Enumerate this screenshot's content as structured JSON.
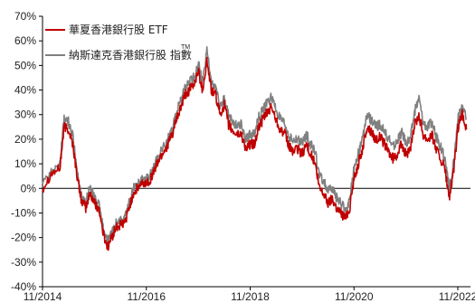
{
  "chart_data": {
    "type": "line",
    "title": "",
    "xlabel": "",
    "ylabel": "",
    "ylim": [
      -40,
      70
    ],
    "y_ticks": [
      -40,
      -30,
      -20,
      -10,
      0,
      10,
      20,
      30,
      40,
      50,
      60,
      70
    ],
    "y_tick_labels": [
      "-40%",
      "-30%",
      "-20%",
      "-10%",
      "0%",
      "10%",
      "20%",
      "30%",
      "40%",
      "50%",
      "60%",
      "70%"
    ],
    "x_tick_labels": [
      "11/2014",
      "11/2016",
      "11/2018",
      "11/2020",
      "11/2022"
    ],
    "x_tick_values": [
      "2014-11",
      "2016-11",
      "2018-11",
      "2020-11",
      "2022-11"
    ],
    "xlim": [
      "2014-11",
      "2022-11"
    ],
    "grid": false,
    "legend_position": "top-left",
    "series": [
      {
        "name": "華夏香港銀行股 ETF",
        "color": "#c00000",
        "points": [
          [
            "2014-11",
            0
          ],
          [
            "2015-01",
            6
          ],
          [
            "2015-03",
            8
          ],
          [
            "2015-04",
            25
          ],
          [
            "2015-05",
            24
          ],
          [
            "2015-06",
            18
          ],
          [
            "2015-07",
            5
          ],
          [
            "2015-08",
            -5
          ],
          [
            "2015-09",
            -8
          ],
          [
            "2015-10",
            -2
          ],
          [
            "2015-11",
            -6
          ],
          [
            "2015-12",
            -8
          ],
          [
            "2016-01",
            -18
          ],
          [
            "2016-02",
            -24
          ],
          [
            "2016-03",
            -20
          ],
          [
            "2016-04",
            -16
          ],
          [
            "2016-05",
            -15
          ],
          [
            "2016-06",
            -14
          ],
          [
            "2016-07",
            -8
          ],
          [
            "2016-08",
            -2
          ],
          [
            "2016-09",
            0
          ],
          [
            "2016-10",
            2
          ],
          [
            "2016-11",
            2
          ],
          [
            "2016-12",
            4
          ],
          [
            "2017-01",
            8
          ],
          [
            "2017-02",
            12
          ],
          [
            "2017-03",
            15
          ],
          [
            "2017-04",
            18
          ],
          [
            "2017-05",
            22
          ],
          [
            "2017-06",
            28
          ],
          [
            "2017-07",
            33
          ],
          [
            "2017-08",
            38
          ],
          [
            "2017-09",
            40
          ],
          [
            "2017-10",
            42
          ],
          [
            "2017-11",
            48
          ],
          [
            "2017-12",
            40
          ],
          [
            "2018-01",
            52
          ],
          [
            "2018-02",
            40
          ],
          [
            "2018-03",
            38
          ],
          [
            "2018-04",
            30
          ],
          [
            "2018-05",
            34
          ],
          [
            "2018-06",
            26
          ],
          [
            "2018-07",
            23
          ],
          [
            "2018-08",
            22
          ],
          [
            "2018-09",
            22
          ],
          [
            "2018-10",
            16
          ],
          [
            "2018-11",
            18
          ],
          [
            "2018-12",
            18
          ],
          [
            "2019-01",
            25
          ],
          [
            "2019-02",
            28
          ],
          [
            "2019-03",
            31
          ],
          [
            "2019-04",
            33
          ],
          [
            "2019-05",
            28
          ],
          [
            "2019-06",
            24
          ],
          [
            "2019-07",
            22
          ],
          [
            "2019-08",
            17
          ],
          [
            "2019-09",
            15
          ],
          [
            "2019-10",
            16
          ],
          [
            "2019-11",
            14
          ],
          [
            "2019-12",
            18
          ],
          [
            "2020-01",
            14
          ],
          [
            "2020-02",
            10
          ],
          [
            "2020-03",
            0
          ],
          [
            "2020-04",
            -2
          ],
          [
            "2020-05",
            -6
          ],
          [
            "2020-06",
            -4
          ],
          [
            "2020-07",
            -8
          ],
          [
            "2020-08",
            -10
          ],
          [
            "2020-09",
            -12
          ],
          [
            "2020-10",
            -8
          ],
          [
            "2020-11",
            4
          ],
          [
            "2020-12",
            10
          ],
          [
            "2021-01",
            16
          ],
          [
            "2021-02",
            25
          ],
          [
            "2021-03",
            23
          ],
          [
            "2021-04",
            20
          ],
          [
            "2021-05",
            21
          ],
          [
            "2021-06",
            18
          ],
          [
            "2021-07",
            15
          ],
          [
            "2021-08",
            12
          ],
          [
            "2021-09",
            14
          ],
          [
            "2021-10",
            18
          ],
          [
            "2021-11",
            14
          ],
          [
            "2021-12",
            15
          ],
          [
            "2022-01",
            26
          ],
          [
            "2022-02",
            30
          ],
          [
            "2022-03",
            22
          ],
          [
            "2022-04",
            20
          ],
          [
            "2022-05",
            22
          ],
          [
            "2022-06",
            16
          ],
          [
            "2022-07",
            12
          ],
          [
            "2022-08",
            8
          ],
          [
            "2022-09",
            -4
          ],
          [
            "2022-10",
            6
          ],
          [
            "2022-11",
            24
          ],
          [
            "2022-12",
            30
          ],
          [
            "2023-01",
            24
          ]
        ]
      },
      {
        "name": "納斯達克香港銀行股 指數",
        "color": "#808080",
        "points": [
          [
            "2014-11",
            1
          ],
          [
            "2015-01",
            7
          ],
          [
            "2015-03",
            10
          ],
          [
            "2015-04",
            28
          ],
          [
            "2015-05",
            27
          ],
          [
            "2015-06",
            21
          ],
          [
            "2015-07",
            7
          ],
          [
            "2015-08",
            -3
          ],
          [
            "2015-09",
            -6
          ],
          [
            "2015-10",
            1
          ],
          [
            "2015-11",
            -4
          ],
          [
            "2015-12",
            -6
          ],
          [
            "2016-01",
            -16
          ],
          [
            "2016-02",
            -22
          ],
          [
            "2016-03",
            -18
          ],
          [
            "2016-04",
            -14
          ],
          [
            "2016-05",
            -13
          ],
          [
            "2016-06",
            -12
          ],
          [
            "2016-07",
            -6
          ],
          [
            "2016-08",
            0
          ],
          [
            "2016-09",
            2
          ],
          [
            "2016-10",
            4
          ],
          [
            "2016-11",
            4
          ],
          [
            "2016-12",
            6
          ],
          [
            "2017-01",
            10
          ],
          [
            "2017-02",
            14
          ],
          [
            "2017-03",
            17
          ],
          [
            "2017-04",
            20
          ],
          [
            "2017-05",
            24
          ],
          [
            "2017-06",
            31
          ],
          [
            "2017-07",
            36
          ],
          [
            "2017-08",
            41
          ],
          [
            "2017-09",
            43
          ],
          [
            "2017-10",
            45
          ],
          [
            "2017-11",
            51
          ],
          [
            "2017-12",
            43
          ],
          [
            "2018-01",
            56
          ],
          [
            "2018-02",
            44
          ],
          [
            "2018-03",
            41
          ],
          [
            "2018-04",
            33
          ],
          [
            "2018-05",
            37
          ],
          [
            "2018-06",
            30
          ],
          [
            "2018-07",
            27
          ],
          [
            "2018-08",
            26
          ],
          [
            "2018-09",
            26
          ],
          [
            "2018-10",
            20
          ],
          [
            "2018-11",
            22
          ],
          [
            "2018-12",
            22
          ],
          [
            "2019-01",
            29
          ],
          [
            "2019-02",
            32
          ],
          [
            "2019-03",
            35
          ],
          [
            "2019-04",
            37
          ],
          [
            "2019-05",
            32
          ],
          [
            "2019-06",
            28
          ],
          [
            "2019-07",
            26
          ],
          [
            "2019-08",
            21
          ],
          [
            "2019-09",
            19
          ],
          [
            "2019-10",
            20
          ],
          [
            "2019-11",
            18
          ],
          [
            "2019-12",
            22
          ],
          [
            "2020-01",
            18
          ],
          [
            "2020-02",
            15
          ],
          [
            "2020-03",
            5
          ],
          [
            "2020-04",
            3
          ],
          [
            "2020-05",
            -1
          ],
          [
            "2020-06",
            0
          ],
          [
            "2020-07",
            -4
          ],
          [
            "2020-08",
            -6
          ],
          [
            "2020-09",
            -9
          ],
          [
            "2020-10",
            -5
          ],
          [
            "2020-11",
            8
          ],
          [
            "2020-12",
            14
          ],
          [
            "2021-01",
            20
          ],
          [
            "2021-02",
            30
          ],
          [
            "2021-03",
            28
          ],
          [
            "2021-04",
            25
          ],
          [
            "2021-05",
            26
          ],
          [
            "2021-06",
            23
          ],
          [
            "2021-07",
            20
          ],
          [
            "2021-08",
            17
          ],
          [
            "2021-09",
            19
          ],
          [
            "2021-10",
            23
          ],
          [
            "2021-11",
            19
          ],
          [
            "2021-12",
            20
          ],
          [
            "2022-01",
            31
          ],
          [
            "2022-02",
            37
          ],
          [
            "2022-03",
            27
          ],
          [
            "2022-04",
            25
          ],
          [
            "2022-05",
            27
          ],
          [
            "2022-06",
            21
          ],
          [
            "2022-07",
            17
          ],
          [
            "2022-08",
            12
          ],
          [
            "2022-09",
            0
          ],
          [
            "2022-10",
            10
          ],
          [
            "2022-11",
            28
          ],
          [
            "2022-12",
            34
          ],
          [
            "2023-01",
            28
          ]
        ]
      }
    ],
    "legend": {
      "entries": [
        "華夏香港銀行股 ETF",
        "納斯達克香港銀行股 指數"
      ],
      "trademark": "TM"
    }
  }
}
